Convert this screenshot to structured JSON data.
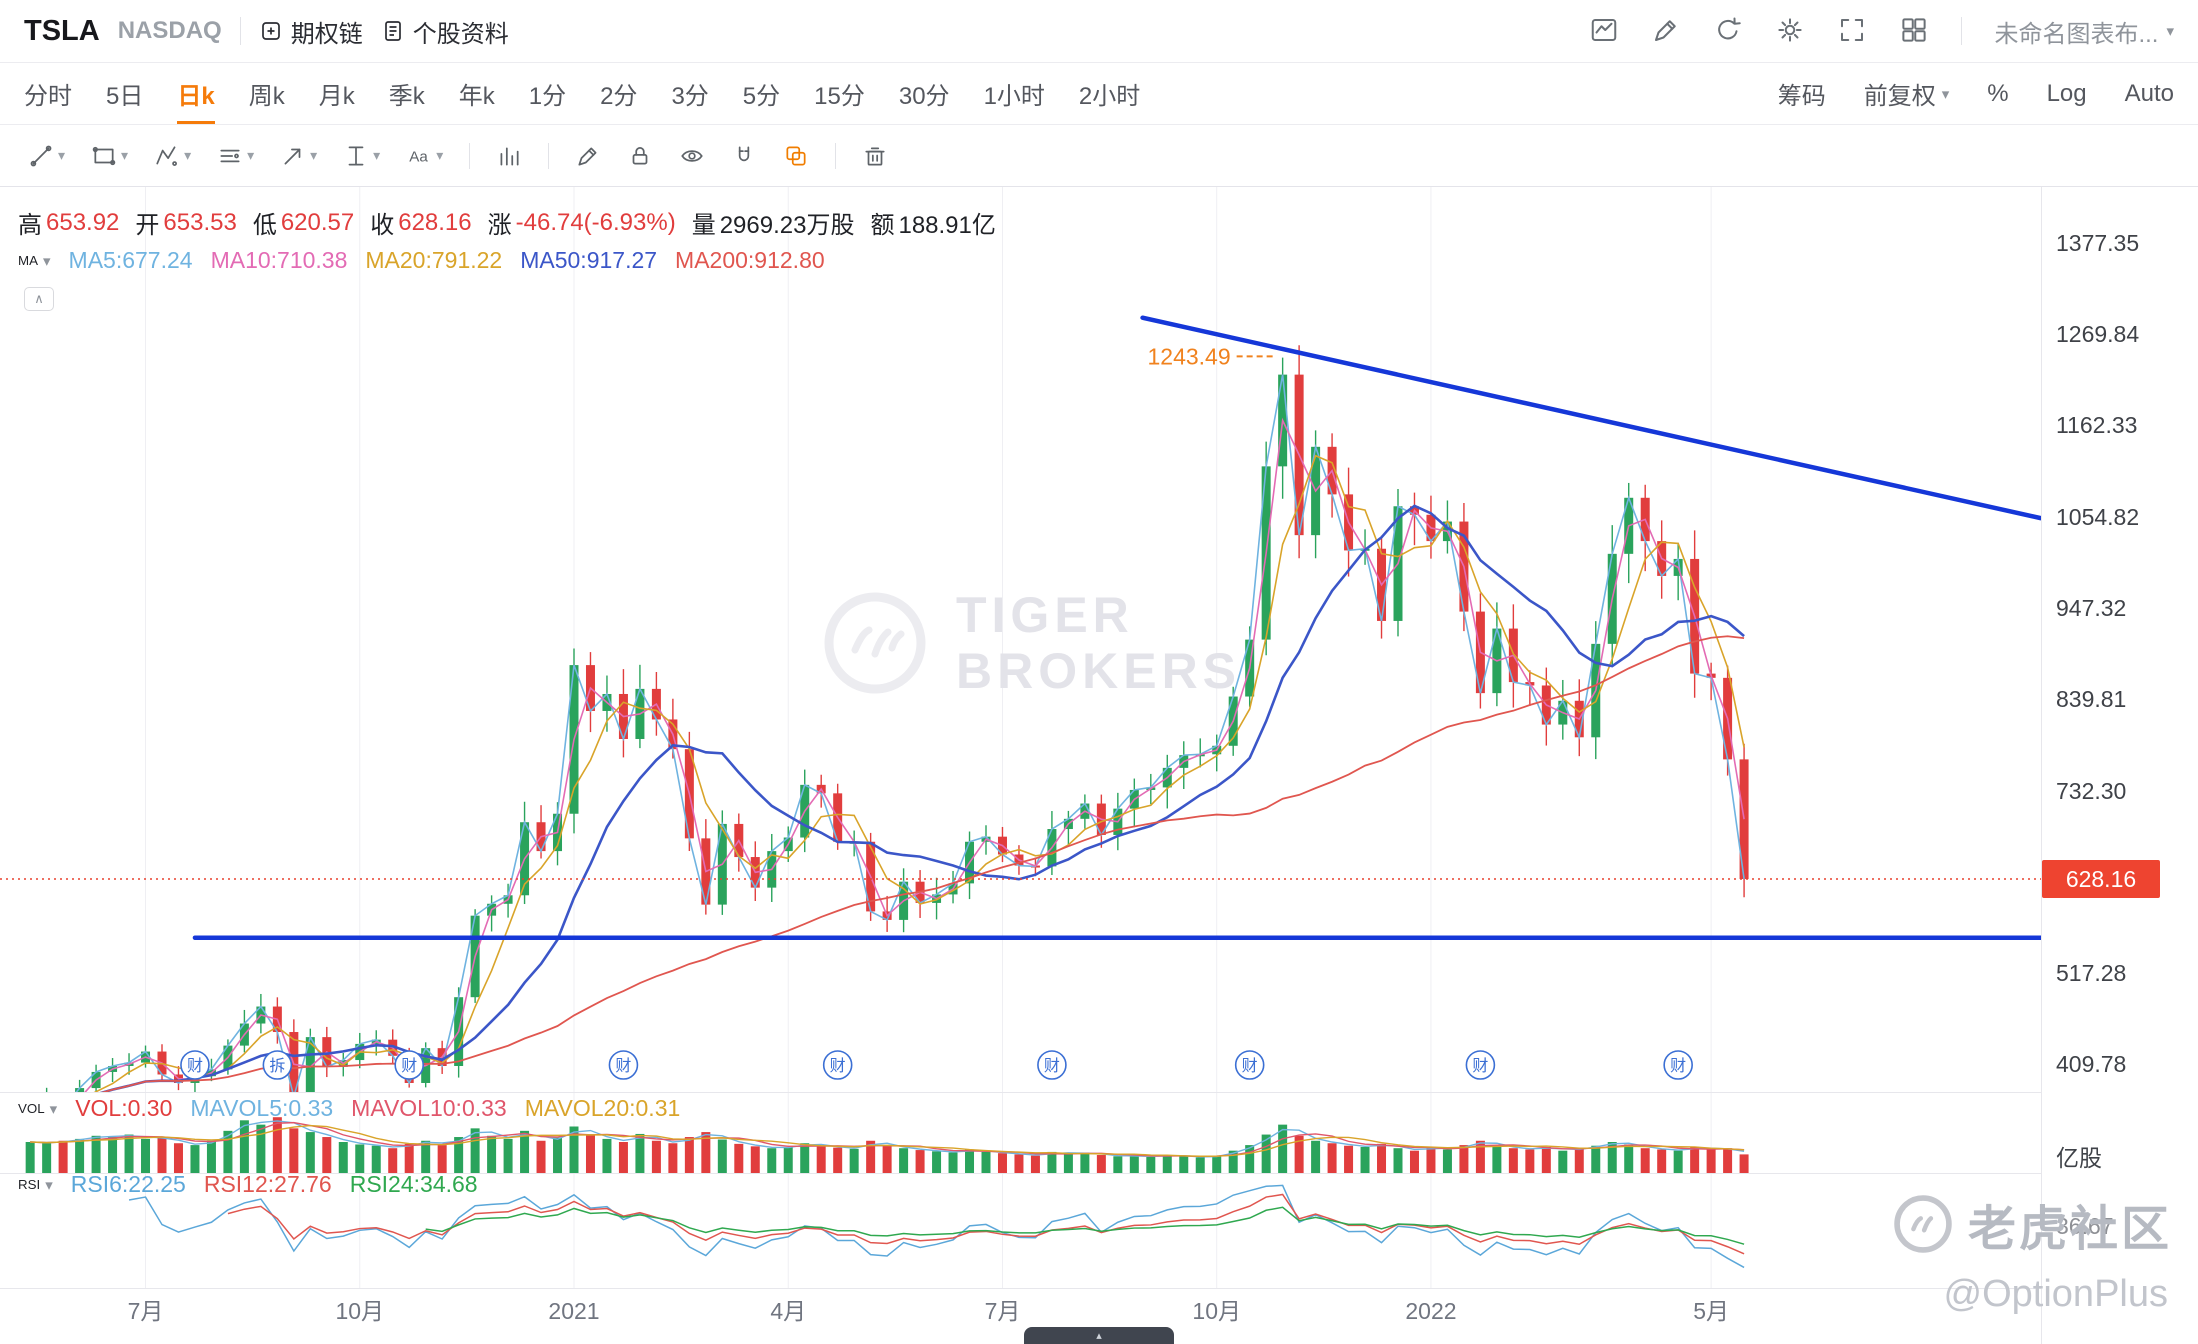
{
  "header": {
    "symbol": "TSLA",
    "exchange": "NASDAQ",
    "tabs": [
      {
        "label": "期权链"
      },
      {
        "label": "个股资料"
      }
    ],
    "layout_name": "未命名图表布...",
    "right_icons": [
      "chart-panel-icon",
      "edit-icon",
      "refresh-icon",
      "settings-gear-icon",
      "fullscreen-icon",
      "layout-grid-icon"
    ]
  },
  "toolbar": {
    "text_tool_glyph": "Aa"
  },
  "timeframe_bar": {
    "items": [
      "分时",
      "5日",
      "日k",
      "周k",
      "月k",
      "季k",
      "年k",
      "1分",
      "2分",
      "3分",
      "5分",
      "15分",
      "30分",
      "1小时",
      "2小时"
    ],
    "selected": "日k",
    "right_items": [
      {
        "text": "筹码",
        "caret": false
      },
      {
        "text": "前复权",
        "caret": true
      },
      {
        "text": "%",
        "caret": false
      },
      {
        "text": "Log",
        "caret": false
      },
      {
        "text": "Auto",
        "caret": false
      }
    ]
  },
  "ohlc": {
    "pairs": [
      {
        "label": "高",
        "value": "653.92",
        "red": true
      },
      {
        "label": "开",
        "value": "653.53",
        "red": true
      },
      {
        "label": "低",
        "value": "620.57",
        "red": true
      },
      {
        "label": "收",
        "value": "628.16",
        "red": true
      },
      {
        "label": "涨",
        "value": "-46.74(-6.93%)",
        "red": true
      },
      {
        "label": "量",
        "value": "2969.23万股",
        "red": false
      },
      {
        "label": "额",
        "value": "188.91亿",
        "red": false
      }
    ]
  },
  "legends": {
    "ma": {
      "title": "MA",
      "items": [
        {
          "text": "MA5:677.24",
          "color": "#6FB3E0"
        },
        {
          "text": "MA10:710.38",
          "color": "#E36BB4"
        },
        {
          "text": "MA20:791.22",
          "color": "#D9A42A"
        },
        {
          "text": "MA50:917.27",
          "color": "#3B56C8"
        },
        {
          "text": "MA200:912.80",
          "color": "#E0564F"
        }
      ]
    },
    "vol": {
      "title": "VOL",
      "items": [
        {
          "text": "VOL:0.30",
          "color": "#E13D3D"
        },
        {
          "text": "MAVOL5:0.33",
          "color": "#6FB3E0"
        },
        {
          "text": "MAVOL10:0.33",
          "color": "#E0566B"
        },
        {
          "text": "MAVOL20:0.31",
          "color": "#D9A42A"
        }
      ]
    },
    "rsi": {
      "title": "RSI",
      "items": [
        {
          "text": "RSI6:22.25",
          "color": "#5BA7D9"
        },
        {
          "text": "RSI12:27.76",
          "color": "#E0564F"
        },
        {
          "text": "RSI24:34.68",
          "color": "#2FA84F"
        }
      ]
    }
  },
  "axis": {
    "price_ticks": [
      "1377.35",
      "1269.84",
      "1162.33",
      "1054.82",
      "947.32",
      "839.81",
      "732.30",
      "517.28",
      "409.78"
    ],
    "last_price": "628.16",
    "vol_unit": "亿股",
    "rsi_axis_value": "36.67"
  },
  "x_axis": {
    "labels": [
      {
        "text": "7月",
        "i": 7
      },
      {
        "text": "10月",
        "i": 20
      },
      {
        "text": "2021",
        "i": 33
      },
      {
        "text": "4月",
        "i": 46
      },
      {
        "text": "7月",
        "i": 59
      },
      {
        "text": "10月",
        "i": 72
      },
      {
        "text": "2022",
        "i": 85
      },
      {
        "text": "5月",
        "i": 102
      }
    ]
  },
  "watermarks": {
    "center_line1": "TIGER",
    "center_line2": "BROKERS",
    "community": "老虎社区",
    "handle": "@OptionPlus"
  },
  "chart_data": {
    "type": "candlestick",
    "symbol": "TSLA",
    "note": "TSLA daily chart Jun 2020 - May 2022, approximated at weekly resolution; prices read from right axis",
    "closes": [
      362,
      370,
      358,
      382,
      401,
      408,
      412,
      425,
      398,
      388,
      396,
      404,
      432,
      458,
      478,
      448,
      372,
      442,
      407,
      415,
      434,
      439,
      420,
      388,
      429,
      408,
      489,
      585,
      599,
      609,
      695,
      661,
      705,
      880,
      826,
      846,
      793,
      852,
      816,
      781,
      676,
      598,
      693,
      654,
      618,
      661,
      677,
      739,
      729,
      672,
      672,
      590,
      580,
      625,
      600,
      610,
      623,
      672,
      678,
      657,
      644,
      643,
      687,
      699,
      717,
      680,
      711,
      733,
      736,
      759,
      774,
      775,
      785,
      843,
      910,
      1114,
      1222,
      1033,
      1137,
      1081,
      1015,
      1017,
      932,
      1067,
      1057,
      1026,
      1049,
      943,
      847,
      923,
      860,
      856,
      810,
      838,
      795,
      905,
      1011,
      1077,
      1026,
      985,
      1005,
      870,
      865,
      769,
      628.16
    ],
    "volumes_yi_shares": [
      0.5,
      0.48,
      0.52,
      0.55,
      0.6,
      0.58,
      0.62,
      0.55,
      0.58,
      0.48,
      0.45,
      0.52,
      0.68,
      0.85,
      0.78,
      0.9,
      0.72,
      0.66,
      0.58,
      0.5,
      0.46,
      0.44,
      0.4,
      0.47,
      0.52,
      0.45,
      0.58,
      0.72,
      0.6,
      0.55,
      0.68,
      0.52,
      0.57,
      0.75,
      0.62,
      0.55,
      0.5,
      0.63,
      0.52,
      0.48,
      0.58,
      0.66,
      0.54,
      0.47,
      0.43,
      0.4,
      0.42,
      0.48,
      0.44,
      0.41,
      0.39,
      0.52,
      0.44,
      0.4,
      0.37,
      0.35,
      0.33,
      0.38,
      0.34,
      0.32,
      0.3,
      0.28,
      0.34,
      0.31,
      0.33,
      0.29,
      0.27,
      0.28,
      0.26,
      0.29,
      0.27,
      0.25,
      0.28,
      0.36,
      0.45,
      0.62,
      0.78,
      0.6,
      0.52,
      0.48,
      0.44,
      0.42,
      0.47,
      0.4,
      0.36,
      0.42,
      0.38,
      0.45,
      0.52,
      0.44,
      0.4,
      0.38,
      0.42,
      0.36,
      0.4,
      0.44,
      0.5,
      0.46,
      0.4,
      0.38,
      0.36,
      0.42,
      0.38,
      0.4,
      0.3
    ],
    "day_ohlc": {
      "high": 653.92,
      "open": 653.53,
      "low": 620.57,
      "close": 628.16,
      "change": "-46.74(-6.93%)"
    },
    "last_close": 628.16,
    "ma_windows": {
      "MA5": 1,
      "MA10": 2,
      "MA20": 4,
      "MA50": 10,
      "MA200": 40
    },
    "trendlines": [
      {
        "i1": 67.5,
        "p1": 1289,
        "i2": 122,
        "p2": 1053,
        "color": "#1537D8"
      },
      {
        "i1": 10,
        "p1": 559,
        "i2": 122,
        "p2": 559,
        "color": "#1537D8"
      }
    ],
    "annotation": {
      "text": "1243.49",
      "i": 76,
      "price": 1243.49,
      "color": "#F0821E"
    },
    "event_badges": [
      {
        "text": "财",
        "i": 10
      },
      {
        "text": "拆",
        "i": 15
      },
      {
        "text": "财",
        "i": 23
      },
      {
        "text": "财",
        "i": 36
      },
      {
        "text": "财",
        "i": 49
      },
      {
        "text": "财",
        "i": 62
      },
      {
        "text": "财",
        "i": 74
      },
      {
        "text": "财",
        "i": 88
      },
      {
        "text": "财",
        "i": 100
      }
    ],
    "colors": {
      "up": "#2AA35C",
      "down": "#E13D3D",
      "trendline": "#1537D8",
      "last_price_line": "#E8402F"
    },
    "price_axis_visible_range": [
      377,
      1443
    ],
    "rsi_periods": [
      6,
      12,
      24
    ]
  }
}
